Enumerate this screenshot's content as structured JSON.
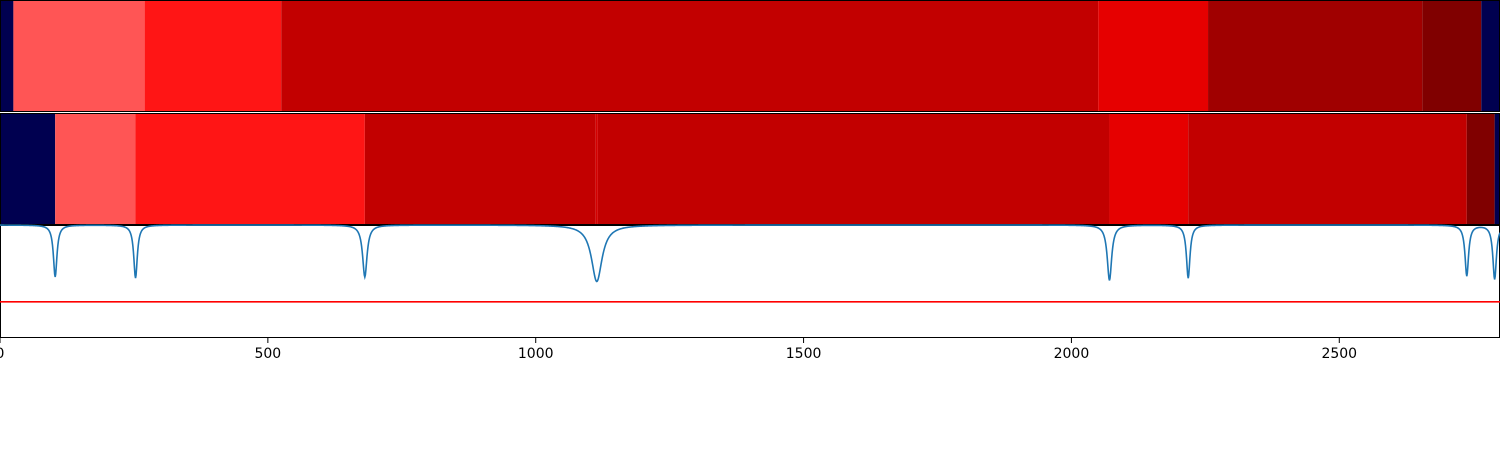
{
  "chart_data": [
    {
      "type": "heatmap",
      "title": "",
      "xlabel": "",
      "ylabel": "",
      "xlim": [
        0,
        2800
      ],
      "segments": [
        {
          "start": 0,
          "end": 25,
          "color": "#000050"
        },
        {
          "start": 25,
          "end": 270,
          "color": "#ff5555"
        },
        {
          "start": 270,
          "end": 525,
          "color": "#ff1515"
        },
        {
          "start": 525,
          "end": 2050,
          "color": "#c20000"
        },
        {
          "start": 2050,
          "end": 2255,
          "color": "#e60000"
        },
        {
          "start": 2255,
          "end": 2655,
          "color": "#a00000"
        },
        {
          "start": 2655,
          "end": 2765,
          "color": "#800000"
        },
        {
          "start": 2765,
          "end": 2800,
          "color": "#000050"
        }
      ]
    },
    {
      "type": "heatmap",
      "title": "",
      "xlabel": "",
      "ylabel": "",
      "xlim": [
        0,
        2800
      ],
      "segments": [
        {
          "start": 0,
          "end": 103,
          "color": "#000050"
        },
        {
          "start": 103,
          "end": 253,
          "color": "#ff5555"
        },
        {
          "start": 253,
          "end": 681,
          "color": "#ff1515"
        },
        {
          "start": 681,
          "end": 1112,
          "color": "#c20000"
        },
        {
          "start": 1112,
          "end": 1116,
          "color": "#d40000"
        },
        {
          "start": 1116,
          "end": 2071,
          "color": "#c20000"
        },
        {
          "start": 2071,
          "end": 2218,
          "color": "#e60000"
        },
        {
          "start": 2218,
          "end": 2738,
          "color": "#c20000"
        },
        {
          "start": 2738,
          "end": 2790,
          "color": "#800000"
        },
        {
          "start": 2790,
          "end": 2800,
          "color": "#000050"
        }
      ]
    },
    {
      "type": "line",
      "title": "",
      "xlabel": "",
      "ylabel": "",
      "xlim": [
        0,
        2800
      ],
      "ylim": [
        -1.0,
        0.0
      ],
      "x_ticks": [
        "0",
        "500",
        "1000",
        "1500",
        "2000",
        "2500"
      ],
      "x_tick_values": [
        0,
        500,
        1000,
        1500,
        2000,
        2500
      ],
      "threshold": {
        "y": -0.68,
        "color": "#ff0000"
      },
      "series": [
        {
          "color": "#1f77b4",
          "baseline": 0.0,
          "dips": [
            {
              "x": 103,
              "depth": 0.46,
              "width": 4
            },
            {
              "x": 253,
              "depth": 0.47,
              "width": 4
            },
            {
              "x": 681,
              "depth": 0.46,
              "width": 5
            },
            {
              "x": 1114,
              "depth": 0.5,
              "width": 12
            },
            {
              "x": 2071,
              "depth": 0.49,
              "width": 5
            },
            {
              "x": 2218,
              "depth": 0.47,
              "width": 4
            },
            {
              "x": 2738,
              "depth": 0.45,
              "width": 4
            },
            {
              "x": 2790,
              "depth": 0.48,
              "width": 4
            }
          ]
        }
      ]
    }
  ]
}
